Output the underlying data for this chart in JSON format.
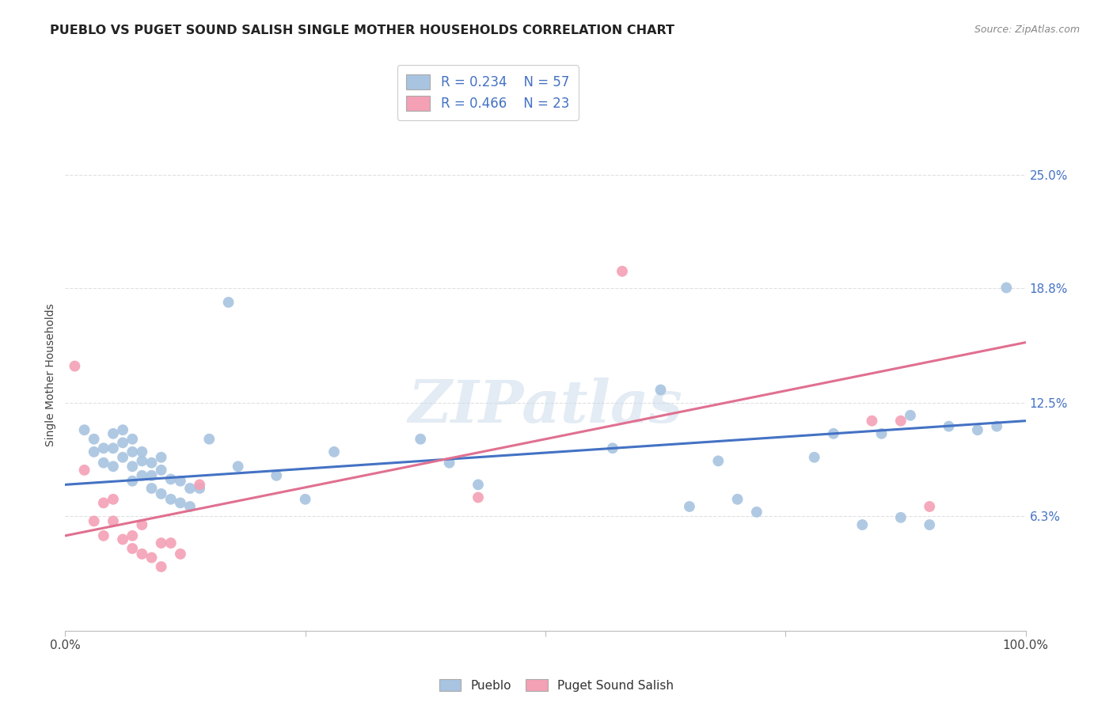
{
  "title": "PUEBLO VS PUGET SOUND SALISH SINGLE MOTHER HOUSEHOLDS CORRELATION CHART",
  "source": "Source: ZipAtlas.com",
  "ylabel": "Single Mother Households",
  "xlim": [
    0,
    1.0
  ],
  "ylim": [
    0,
    0.28
  ],
  "ytick_labels_right": [
    "6.3%",
    "12.5%",
    "18.8%",
    "25.0%"
  ],
  "ytick_vals_right": [
    0.063,
    0.125,
    0.188,
    0.25
  ],
  "pueblo_R": "0.234",
  "pueblo_N": "57",
  "puget_R": "0.466",
  "puget_N": "23",
  "pueblo_color": "#a8c4e0",
  "puget_color": "#f4a0b5",
  "pueblo_line_color": "#4472C4",
  "puget_line_color": "#E07090",
  "background_color": "#ffffff",
  "grid_color": "#e0e0e0",
  "watermark": "ZIPatlas",
  "pueblo_x": [
    0.02,
    0.03,
    0.03,
    0.04,
    0.04,
    0.05,
    0.05,
    0.05,
    0.06,
    0.06,
    0.06,
    0.07,
    0.07,
    0.07,
    0.07,
    0.08,
    0.08,
    0.08,
    0.09,
    0.09,
    0.09,
    0.1,
    0.1,
    0.1,
    0.11,
    0.11,
    0.12,
    0.12,
    0.13,
    0.13,
    0.14,
    0.15,
    0.17,
    0.18,
    0.22,
    0.25,
    0.28,
    0.37,
    0.4,
    0.43,
    0.57,
    0.62,
    0.65,
    0.68,
    0.7,
    0.72,
    0.78,
    0.8,
    0.83,
    0.85,
    0.87,
    0.88,
    0.9,
    0.92,
    0.95,
    0.97,
    0.98
  ],
  "pueblo_y": [
    0.11,
    0.105,
    0.098,
    0.1,
    0.092,
    0.108,
    0.1,
    0.09,
    0.11,
    0.103,
    0.095,
    0.105,
    0.098,
    0.09,
    0.082,
    0.098,
    0.093,
    0.085,
    0.092,
    0.085,
    0.078,
    0.095,
    0.088,
    0.075,
    0.083,
    0.072,
    0.082,
    0.07,
    0.078,
    0.068,
    0.078,
    0.105,
    0.18,
    0.09,
    0.085,
    0.072,
    0.098,
    0.105,
    0.092,
    0.08,
    0.1,
    0.132,
    0.068,
    0.093,
    0.072,
    0.065,
    0.095,
    0.108,
    0.058,
    0.108,
    0.062,
    0.118,
    0.058,
    0.112,
    0.11,
    0.112,
    0.188
  ],
  "puget_x": [
    0.01,
    0.02,
    0.03,
    0.04,
    0.04,
    0.05,
    0.05,
    0.06,
    0.07,
    0.07,
    0.08,
    0.08,
    0.09,
    0.1,
    0.1,
    0.11,
    0.12,
    0.14,
    0.43,
    0.58,
    0.84,
    0.87,
    0.9
  ],
  "puget_y": [
    0.145,
    0.088,
    0.06,
    0.07,
    0.052,
    0.072,
    0.06,
    0.05,
    0.052,
    0.045,
    0.058,
    0.042,
    0.04,
    0.048,
    0.035,
    0.048,
    0.042,
    0.08,
    0.073,
    0.197,
    0.115,
    0.115,
    0.068
  ],
  "pueblo_trend_x": [
    0.0,
    1.0
  ],
  "pueblo_trend_y": [
    0.08,
    0.115
  ],
  "puget_trend_x": [
    0.0,
    1.0
  ],
  "puget_trend_y": [
    0.052,
    0.158
  ]
}
